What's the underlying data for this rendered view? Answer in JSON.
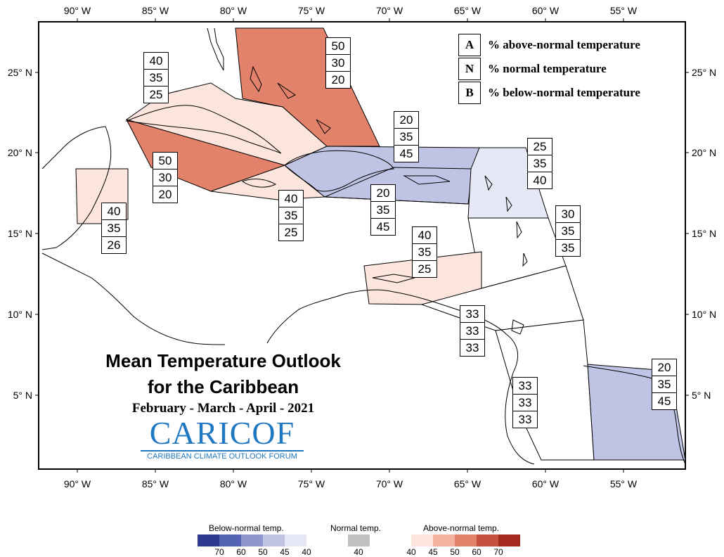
{
  "axes": {
    "lon_labels": [
      "90° W",
      "85° W",
      "80° W",
      "75° W",
      "70° W",
      "65° W",
      "60° W",
      "55° W"
    ],
    "lat_labels": [
      "25° N",
      "20° N",
      "15° N",
      "10° N",
      "5° N"
    ]
  },
  "key": {
    "rows": [
      {
        "letter": "A",
        "text": "% above-normal temperature"
      },
      {
        "letter": "N",
        "text": "% normal temperature"
      },
      {
        "letter": "B",
        "text": "% below-normal temperature"
      }
    ]
  },
  "regions": [
    {
      "values": [
        "50",
        "30",
        "20"
      ],
      "color": "#e3826b"
    },
    {
      "values": [
        "40",
        "35",
        "25"
      ],
      "color": "#fbe5dd"
    },
    {
      "values": [
        "50",
        "30",
        "20"
      ],
      "color": "#e3826b"
    },
    {
      "values": [
        "40",
        "35",
        "25"
      ],
      "color": "#fbe5dd"
    },
    {
      "values": [
        "20",
        "35",
        "45"
      ],
      "color": "#c0c4e4"
    },
    {
      "values": [
        "20",
        "35",
        "45"
      ],
      "color": "#c0c4e4"
    },
    {
      "values": [
        "25",
        "35",
        "40"
      ],
      "color": "#e6e8f5"
    },
    {
      "values": [
        "30",
        "35",
        "35"
      ],
      "color": "#ffffff"
    },
    {
      "values": [
        "40",
        "35",
        "26"
      ],
      "color": "#fbe5dd"
    },
    {
      "values": [
        "40",
        "35",
        "25"
      ],
      "color": "#fbe5dd"
    },
    {
      "values": [
        "33",
        "33",
        "33"
      ],
      "color": "#ffffff"
    },
    {
      "values": [
        "33",
        "33",
        "33"
      ],
      "color": "#ffffff"
    },
    {
      "values": [
        "20",
        "35",
        "45"
      ],
      "color": "#c0c4e4"
    }
  ],
  "title": {
    "line1": "Mean Temperature Outlook",
    "line2": "for the Caribbean",
    "period": "February - March - April - 2021"
  },
  "logo": {
    "text": "CARICOF",
    "subtitle": "CARIBBEAN CLIMATE OUTLOOK FORUM"
  },
  "legend": {
    "below_title": "Below-normal temp.",
    "normal_title": "Normal temp.",
    "above_title": "Above-normal temp.",
    "below_ticks": [
      "70",
      "60",
      "50",
      "45",
      "40"
    ],
    "normal_ticks": [
      "40"
    ],
    "above_ticks": [
      "40",
      "45",
      "50",
      "60",
      "70"
    ],
    "below_colors": [
      "#2f3a8f",
      "#5464b4",
      "#8d95cf",
      "#c0c4e4",
      "#e6e8f5"
    ],
    "normal_color": "#c0c0c0",
    "above_colors": [
      "#fbe5dd",
      "#f4b19d",
      "#e3826b",
      "#c75140",
      "#a52a1e"
    ]
  }
}
